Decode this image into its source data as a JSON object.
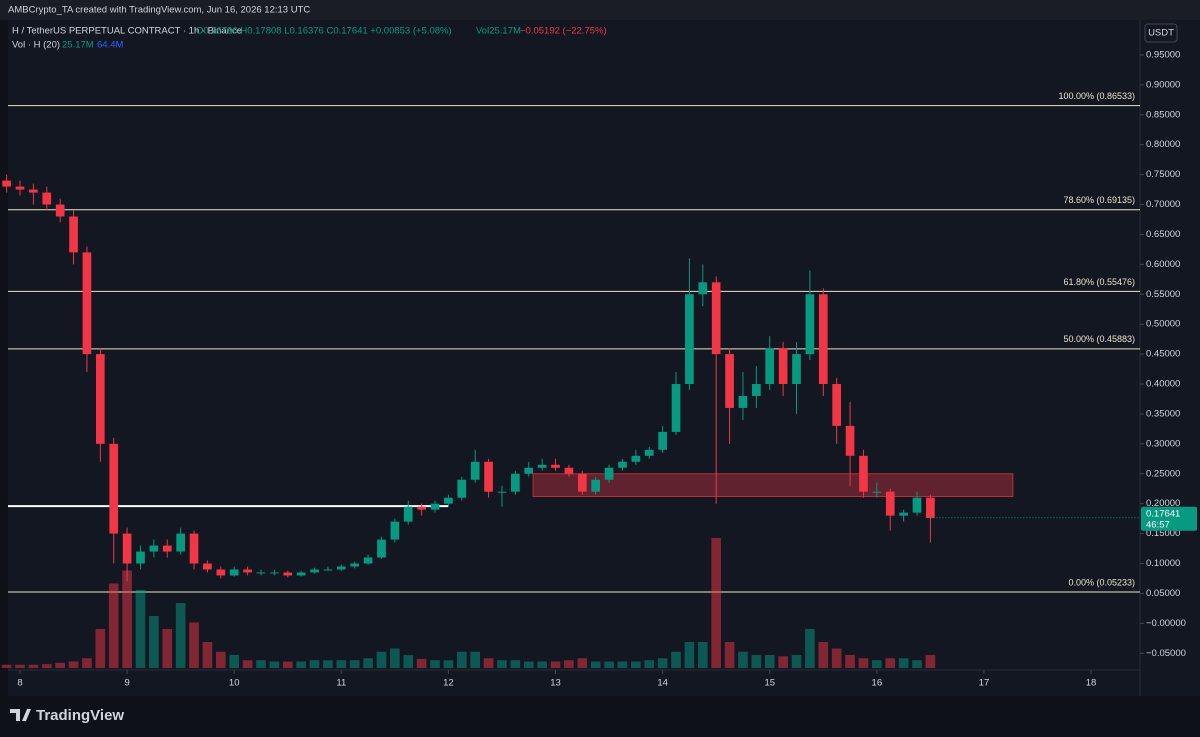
{
  "header": {
    "author_line": "AMBCrypto_TA created with TradingView.com, Jun 16, 2026 12:13 UTC",
    "symbol": "H / TetherUS PERPETUAL CONTRACT · 1h · Binance",
    "ohlc_line": "O0.16796 H0.17808 L0.16376 C0.17641 +0.00853 (+5.08%)",
    "volume_now": "Vol25.17M",
    "change": "−0.05192 (−22.75%)",
    "vol_label": "Vol · H (20)",
    "vol_value": "25.17M",
    "vol_ma": "64.4M",
    "currency": "USDT"
  },
  "footer": {
    "brand": "TradingView"
  },
  "chart_data": {
    "type": "candlestick",
    "up_color": "#089981",
    "down_color": "#f23645",
    "xlim": [
      7.888,
      18.457
    ],
    "xticks": [
      8,
      9,
      10,
      11,
      12,
      13,
      14,
      15,
      16,
      17,
      18
    ],
    "ylim": [
      -0.078,
      0.975
    ],
    "yticks": [
      {
        "value": -0.05,
        "label": "−0.05000"
      },
      {
        "value": 0,
        "label": "−0.00000"
      },
      {
        "value": 0.05,
        "label": "0.05000"
      },
      {
        "value": 0.1,
        "label": "0.10000"
      },
      {
        "value": 0.15,
        "label": "0.15000"
      },
      {
        "value": 0.2,
        "label": "0.20000"
      },
      {
        "value": 0.25,
        "label": "0.25000"
      },
      {
        "value": 0.3,
        "label": "0.30000"
      },
      {
        "value": 0.35,
        "label": "0.35000"
      },
      {
        "value": 0.4,
        "label": "0.40000"
      },
      {
        "value": 0.45,
        "label": "0.45000"
      },
      {
        "value": 0.5,
        "label": "0.50000"
      },
      {
        "value": 0.55,
        "label": "0.55000"
      },
      {
        "value": 0.6,
        "label": "0.60000"
      },
      {
        "value": 0.65,
        "label": "0.65000"
      },
      {
        "value": 0.7,
        "label": "0.70000"
      },
      {
        "value": 0.75,
        "label": "0.75000"
      },
      {
        "value": 0.8,
        "label": "0.80000"
      },
      {
        "value": 0.85,
        "label": "0.85000"
      },
      {
        "value": 0.9,
        "label": "0.90000"
      },
      {
        "value": 0.95,
        "label": "0.95000"
      }
    ],
    "x": [
      7.875,
      8,
      8.125,
      8.25,
      8.375,
      8.5,
      8.625,
      8.75,
      8.875,
      9,
      9.125,
      9.25,
      9.375,
      9.5,
      9.625,
      9.75,
      9.875,
      10,
      10.125,
      10.25,
      10.375,
      10.5,
      10.625,
      10.75,
      10.875,
      11,
      11.125,
      11.25,
      11.375,
      11.5,
      11.625,
      11.75,
      11.875,
      12,
      12.125,
      12.25,
      12.375,
      12.5,
      12.625,
      12.75,
      12.875,
      13,
      13.125,
      13.25,
      13.375,
      13.5,
      13.625,
      13.75,
      13.875,
      14,
      14.125,
      14.25,
      14.375,
      14.5,
      14.625,
      14.75,
      14.875,
      15,
      15.125,
      15.25,
      15.375,
      15.5,
      15.625,
      15.75,
      15.875,
      16,
      16.125,
      16.25,
      16.375,
      16.5
    ],
    "ohlc": [
      [
        0.74,
        0.75,
        0.72,
        0.73
      ],
      [
        0.73,
        0.74,
        0.715,
        0.725
      ],
      [
        0.725,
        0.735,
        0.7,
        0.72
      ],
      [
        0.72,
        0.73,
        0.69,
        0.7
      ],
      [
        0.7,
        0.71,
        0.67,
        0.68
      ],
      [
        0.68,
        0.69,
        0.6,
        0.62
      ],
      [
        0.62,
        0.63,
        0.42,
        0.45
      ],
      [
        0.45,
        0.46,
        0.27,
        0.3
      ],
      [
        0.3,
        0.31,
        0.1,
        0.15
      ],
      [
        0.15,
        0.16,
        0.07,
        0.1
      ],
      [
        0.1,
        0.13,
        0.09,
        0.12
      ],
      [
        0.12,
        0.14,
        0.11,
        0.13
      ],
      [
        0.13,
        0.14,
        0.11,
        0.12
      ],
      [
        0.12,
        0.16,
        0.115,
        0.15
      ],
      [
        0.15,
        0.155,
        0.09,
        0.1
      ],
      [
        0.1,
        0.105,
        0.085,
        0.09
      ],
      [
        0.09,
        0.095,
        0.075,
        0.08
      ],
      [
        0.08,
        0.095,
        0.078,
        0.09
      ],
      [
        0.09,
        0.095,
        0.08,
        0.085
      ],
      [
        0.085,
        0.09,
        0.08,
        0.085
      ],
      [
        0.085,
        0.09,
        0.08,
        0.085
      ],
      [
        0.085,
        0.088,
        0.077,
        0.08
      ],
      [
        0.08,
        0.088,
        0.078,
        0.085
      ],
      [
        0.085,
        0.093,
        0.083,
        0.09
      ],
      [
        0.09,
        0.095,
        0.087,
        0.09
      ],
      [
        0.09,
        0.098,
        0.088,
        0.095
      ],
      [
        0.095,
        0.103,
        0.092,
        0.1
      ],
      [
        0.1,
        0.115,
        0.098,
        0.11
      ],
      [
        0.11,
        0.145,
        0.108,
        0.14
      ],
      [
        0.14,
        0.175,
        0.135,
        0.17
      ],
      [
        0.17,
        0.205,
        0.165,
        0.195
      ],
      [
        0.195,
        0.2,
        0.18,
        0.19
      ],
      [
        0.19,
        0.205,
        0.185,
        0.2
      ],
      [
        0.2,
        0.215,
        0.195,
        0.21
      ],
      [
        0.21,
        0.245,
        0.205,
        0.24
      ],
      [
        0.24,
        0.29,
        0.235,
        0.27
      ],
      [
        0.27,
        0.275,
        0.21,
        0.22
      ],
      [
        0.22,
        0.23,
        0.195,
        0.22
      ],
      [
        0.22,
        0.255,
        0.215,
        0.25
      ],
      [
        0.25,
        0.27,
        0.245,
        0.26
      ],
      [
        0.26,
        0.275,
        0.255,
        0.265
      ],
      [
        0.265,
        0.275,
        0.255,
        0.26
      ],
      [
        0.26,
        0.265,
        0.245,
        0.25
      ],
      [
        0.25,
        0.255,
        0.215,
        0.22
      ],
      [
        0.22,
        0.245,
        0.215,
        0.24
      ],
      [
        0.24,
        0.265,
        0.235,
        0.26
      ],
      [
        0.26,
        0.275,
        0.255,
        0.27
      ],
      [
        0.27,
        0.29,
        0.265,
        0.28
      ],
      [
        0.28,
        0.295,
        0.275,
        0.29
      ],
      [
        0.29,
        0.33,
        0.285,
        0.32
      ],
      [
        0.32,
        0.42,
        0.315,
        0.4
      ],
      [
        0.4,
        0.61,
        0.39,
        0.55
      ],
      [
        0.55,
        0.6,
        0.53,
        0.57
      ],
      [
        0.57,
        0.58,
        0.2,
        0.45
      ],
      [
        0.45,
        0.46,
        0.3,
        0.36
      ],
      [
        0.36,
        0.42,
        0.34,
        0.38
      ],
      [
        0.38,
        0.43,
        0.36,
        0.4
      ],
      [
        0.4,
        0.48,
        0.39,
        0.46
      ],
      [
        0.46,
        0.47,
        0.38,
        0.4
      ],
      [
        0.4,
        0.47,
        0.35,
        0.45
      ],
      [
        0.45,
        0.59,
        0.44,
        0.55
      ],
      [
        0.55,
        0.56,
        0.38,
        0.4
      ],
      [
        0.4,
        0.41,
        0.3,
        0.33
      ],
      [
        0.33,
        0.37,
        0.23,
        0.28
      ],
      [
        0.28,
        0.29,
        0.21,
        0.22
      ],
      [
        0.22,
        0.235,
        0.21,
        0.22
      ],
      [
        0.22,
        0.225,
        0.155,
        0.18
      ],
      [
        0.18,
        0.19,
        0.17,
        0.185
      ],
      [
        0.185,
        0.22,
        0.18,
        0.21
      ],
      [
        0.21,
        0.215,
        0.135,
        0.176
      ]
    ],
    "volume": [
      5,
      5,
      5,
      6,
      8,
      10,
      15,
      60,
      130,
      150,
      120,
      80,
      60,
      100,
      70,
      40,
      25,
      20,
      12,
      12,
      10,
      10,
      10,
      12,
      12,
      12,
      12,
      15,
      25,
      30,
      20,
      14,
      12,
      12,
      25,
      25,
      15,
      12,
      12,
      10,
      10,
      10,
      12,
      15,
      10,
      10,
      10,
      10,
      12,
      15,
      25,
      40,
      40,
      200,
      40,
      25,
      20,
      20,
      18,
      20,
      60,
      40,
      30,
      20,
      15,
      12,
      15,
      15,
      12,
      20
    ],
    "volume_lim": [
      0,
      400
    ],
    "fib_levels": [
      {
        "value": 0.86533,
        "label": "100.00% (0.86533)"
      },
      {
        "value": 0.69135,
        "label": "78.60% (0.69135)"
      },
      {
        "value": 0.55476,
        "label": "61.80% (0.55476)"
      },
      {
        "value": 0.45883,
        "label": "50.00% (0.45883)"
      },
      {
        "value": 0.05233,
        "label": "0.00% (0.05233)"
      }
    ],
    "support_line": {
      "value": 0.196,
      "x": [
        7.888,
        12.0
      ]
    },
    "zone": {
      "x": [
        12.79,
        17.27
      ],
      "y": [
        0.212,
        0.25
      ],
      "color": "#f23645"
    },
    "last_price": {
      "value": 0.17641,
      "label": "0.17641",
      "countdown": "46:57"
    }
  }
}
